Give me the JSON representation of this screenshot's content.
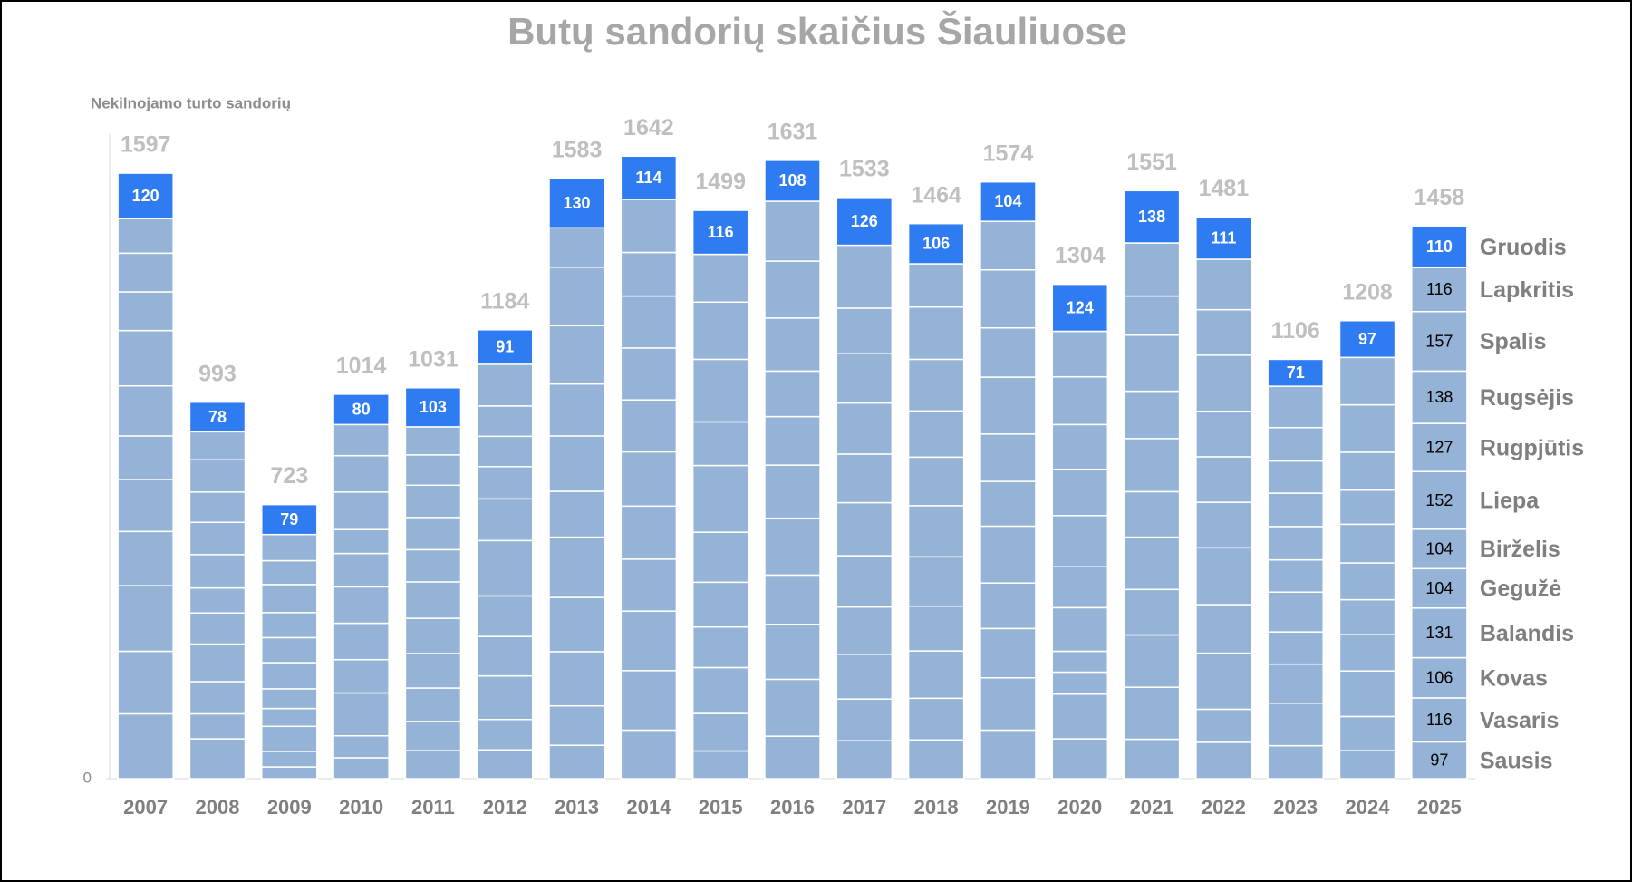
{
  "chart_data": {
    "type": "stacked-bar",
    "title": "Butų sandorių skaičius Šiauliuose",
    "y_label": "Nekilnojamo turto sandorių",
    "categories": [
      "2007",
      "2008",
      "2009",
      "2010",
      "2011",
      "2012",
      "2013",
      "2014",
      "2015",
      "2016",
      "2017",
      "2018",
      "2019",
      "2020",
      "2021",
      "2022",
      "2023",
      "2024",
      "2025"
    ],
    "totals": [
      1597,
      993,
      723,
      1014,
      1031,
      1184,
      1583,
      1642,
      1499,
      1631,
      1533,
      1464,
      1574,
      1304,
      1551,
      1481,
      1106,
      1208,
      1458
    ],
    "ylim": [
      0,
      1700
    ],
    "yticks": [
      0
    ],
    "series": [
      {
        "name": "Sausis",
        "color": "#95b3d7",
        "labels": "last",
        "values": [
          171,
          105,
          31,
          55,
          74,
          76,
          88,
          128,
          73,
          112,
          100,
          102,
          128,
          105,
          104,
          96,
          87,
          74,
          97
        ]
      },
      {
        "name": "Vasaris",
        "color": "#95b3d7",
        "labels": "last",
        "values": [
          165,
          66,
          41,
          58,
          77,
          80,
          104,
          157,
          99,
          150,
          110,
          110,
          138,
          118,
          137,
          87,
          112,
          90,
          116
        ]
      },
      {
        "name": "Kovas",
        "color": "#95b3d7",
        "labels": "last",
        "values": [
          173,
          85,
          66,
          113,
          88,
          115,
          143,
          157,
          121,
          145,
          118,
          125,
          130,
          58,
          138,
          148,
          103,
          120,
          106
        ]
      },
      {
        "name": "Balandis",
        "color": "#95b3d7",
        "labels": "last",
        "values": [
          143,
          99,
          47,
          88,
          91,
          104,
          143,
          137,
          107,
          130,
          125,
          118,
          120,
          55,
          120,
          128,
          85,
          96,
          131
        ]
      },
      {
        "name": "Gegužė",
        "color": "#95b3d7",
        "labels": "last",
        "values": [
          137,
          82,
          52,
          96,
          93,
          107,
          159,
          140,
          118,
          150,
          135,
          130,
          150,
          115,
          138,
          150,
          105,
          92,
          104
        ]
      },
      {
        "name": "Birželis",
        "color": "#95b3d7",
        "labels": "last",
        "values": [
          115,
          66,
          69,
          96,
          96,
          146,
          121,
          143,
          132,
          140,
          140,
          135,
          118,
          108,
          120,
          120,
          85,
          97,
          104
        ]
      },
      {
        "name": "Liepa",
        "color": "#95b3d7",
        "labels": "last",
        "values": [
          132,
          88,
          66,
          88,
          85,
          110,
          146,
          137,
          176,
          128,
          128,
          128,
          125,
          135,
          140,
          120,
          88,
          102,
          152
        ]
      },
      {
        "name": "Rugpjūtis",
        "color": "#95b3d7",
        "labels": "last",
        "values": [
          146,
          85,
          66,
          63,
          85,
          85,
          137,
          137,
          115,
          120,
          135,
          122,
          150,
          122,
          125,
          120,
          88,
          90,
          127
        ]
      },
      {
        "name": "Rugsėjis",
        "color": "#95b3d7",
        "labels": "last",
        "values": [
          102,
          80,
          74,
          99,
          85,
          80,
          154,
          137,
          165,
          140,
          130,
          136,
          130,
          118,
          148,
          148,
          85,
          100,
          138
        ]
      },
      {
        "name": "Spalis",
        "color": "#95b3d7",
        "labels": "last",
        "values": [
          102,
          85,
          63,
          96,
          80,
          80,
          154,
          115,
          151,
          150,
          120,
          138,
          153,
          126,
          103,
          120,
          88,
          125,
          157
        ]
      },
      {
        "name": "Lapkritis",
        "color": "#95b3d7",
        "labels": "last",
        "values": [
          91,
          74,
          69,
          82,
          74,
          110,
          104,
          140,
          126,
          158,
          166,
          114,
          128,
          120,
          140,
          133,
          109,
          125,
          116
        ]
      },
      {
        "name": "Gruodis",
        "color": "#2f7cf2",
        "labels": "all",
        "values": [
          120,
          78,
          79,
          80,
          103,
          91,
          130,
          114,
          116,
          108,
          126,
          106,
          104,
          124,
          138,
          111,
          71,
          97,
          110
        ]
      }
    ]
  }
}
